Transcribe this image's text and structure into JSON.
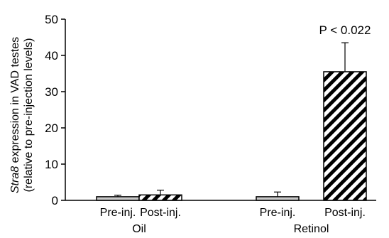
{
  "chart_data": {
    "type": "bar",
    "groups": [
      {
        "name": "Oil",
        "bars": [
          {
            "label": "Pre-inj.",
            "value": 1.0,
            "error": 0.4,
            "fill": "#c8c8c8",
            "pattern": "solid"
          },
          {
            "label": "Post-inj.",
            "value": 1.5,
            "error": 1.3,
            "fill": "#000000",
            "pattern": "diagonal-stripes"
          }
        ]
      },
      {
        "name": "Retinol",
        "bars": [
          {
            "label": "Pre-inj.",
            "value": 1.0,
            "error": 1.3,
            "fill": "#c8c8c8",
            "pattern": "solid"
          },
          {
            "label": "Post-inj.",
            "value": 35.5,
            "error": 8.0,
            "fill": "#000000",
            "pattern": "diagonal-stripes"
          }
        ]
      }
    ],
    "ylabel_italic": "Stra8",
    "ylabel_rest": " expression in VAD testes",
    "ylabel_line2": "(relative to pre-injection levels)",
    "ylim": [
      0,
      50
    ],
    "yticks": [
      0,
      10,
      20,
      30,
      40,
      50
    ],
    "grid": false,
    "annotations": [
      {
        "text": "P < 0.022",
        "group": 1,
        "bar": 1
      }
    ]
  }
}
